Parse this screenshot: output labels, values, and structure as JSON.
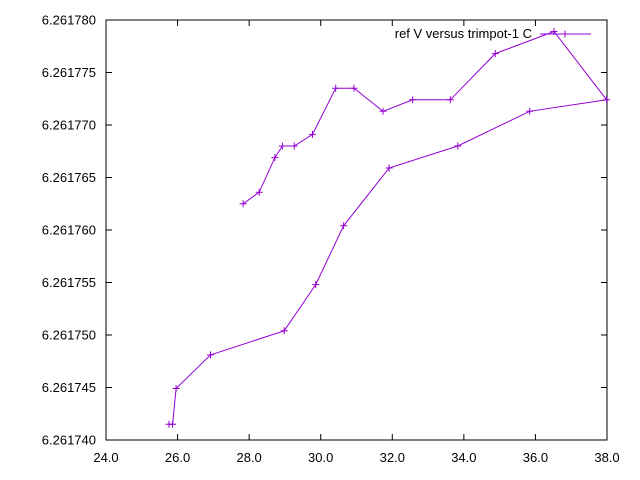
{
  "chart_data": {
    "type": "line",
    "title": "",
    "xlabel": "",
    "ylabel": "",
    "xlim": [
      24.0,
      38.0
    ],
    "ylim": [
      6.26174,
      6.26178
    ],
    "xticks": [
      "24.0",
      "26.0",
      "28.0",
      "30.0",
      "32.0",
      "34.0",
      "36.0",
      "38.0"
    ],
    "yticks": [
      "6.261740",
      "6.261745",
      "6.261750",
      "6.261755",
      "6.261760",
      "6.261765",
      "6.261770",
      "6.261775",
      "6.261780"
    ],
    "grid": false,
    "legend_position": "top-right",
    "color": "#9400d3",
    "series": [
      {
        "name": "ref V versus trimpot-1 C",
        "marker": "plus",
        "points": [
          [
            25.76,
            6.2617415
          ],
          [
            25.86,
            6.2617415
          ],
          [
            25.96,
            6.2617449
          ],
          [
            26.92,
            6.2617481
          ],
          [
            28.98,
            6.2617504
          ],
          [
            29.86,
            6.2617548
          ],
          [
            30.64,
            6.2617604
          ],
          [
            31.91,
            6.2617659
          ],
          [
            33.83,
            6.261768
          ],
          [
            35.84,
            6.2617713
          ],
          [
            37.99,
            6.2617724
          ],
          [
            36.52,
            6.2617789
          ],
          [
            34.88,
            6.2617768
          ],
          [
            33.62,
            6.2617724
          ],
          [
            32.57,
            6.2617724
          ],
          [
            31.74,
            6.2617713
          ],
          [
            30.93,
            6.2617735
          ],
          [
            30.42,
            6.2617735
          ],
          [
            29.77,
            6.2617691
          ],
          [
            29.26,
            6.261768
          ],
          [
            28.93,
            6.261768
          ],
          [
            28.72,
            6.2617669
          ],
          [
            28.28,
            6.2617636
          ],
          [
            27.83,
            6.2617625
          ]
        ]
      }
    ]
  }
}
